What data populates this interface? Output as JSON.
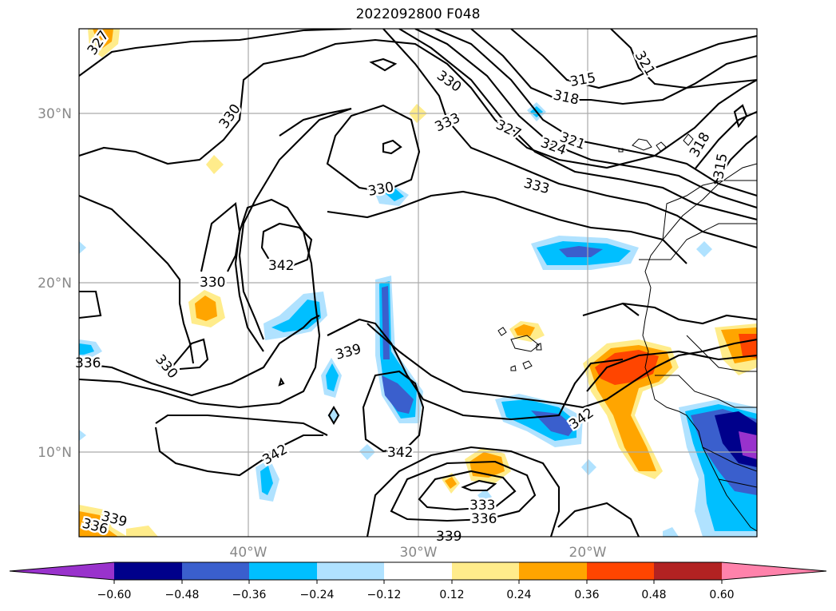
{
  "title": "2022092800 F048",
  "lat_labels": [
    "30°N",
    "20°N",
    "10°N"
  ],
  "lon_labels": [
    "40°W",
    "30°W",
    "20°W"
  ],
  "contour_labels": [
    "327",
    "330",
    "330",
    "333",
    "315",
    "318",
    "321",
    "321",
    "327",
    "324",
    "318",
    "315",
    "333",
    "330",
    "342",
    "330",
    "336",
    "330",
    "339",
    "342",
    "342",
    "342",
    "339",
    "336",
    "333",
    "336",
    "339"
  ],
  "colorbar": {
    "colors": [
      "#9932cc",
      "#00008b",
      "#3a5fcd",
      "#00bfff",
      "#b0e2ff",
      "#ffffff",
      "#ffec8b",
      "#ffa500",
      "#ff4500",
      "#b22222",
      "#ff82ab"
    ],
    "ticks": [
      "−0.60",
      "−0.48",
      "−0.36",
      "−0.24",
      "−0.12",
      "0.12",
      "0.24",
      "0.36",
      "0.48",
      "0.60"
    ]
  },
  "chart_data": {
    "type": "map",
    "title": "2022092800 F048",
    "lat_range_deg_N": [
      5,
      35
    ],
    "lon_range_deg_W": [
      50,
      10
    ],
    "gridlines_lat": [
      30,
      20,
      10
    ],
    "gridlines_lon": [
      40,
      30,
      20
    ],
    "contour_levels": [
      315,
      318,
      321,
      324,
      327,
      330,
      333,
      336,
      339,
      342
    ],
    "colorbar_bounds": [
      -0.6,
      -0.48,
      -0.36,
      -0.24,
      -0.12,
      0.12,
      0.24,
      0.36,
      0.48,
      0.6
    ],
    "colorbar_extend": "both"
  }
}
